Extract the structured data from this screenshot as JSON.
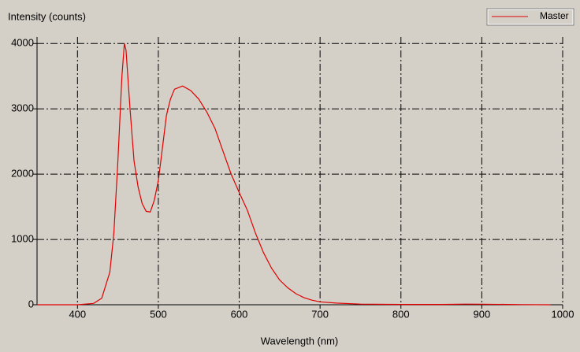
{
  "chart_data": {
    "type": "line",
    "y_label": "Intensity (counts)",
    "x_label": "Wavelength (nm)",
    "x": [
      350,
      400,
      420,
      430,
      440,
      445,
      450,
      455,
      458,
      460,
      465,
      470,
      475,
      480,
      485,
      490,
      495,
      500,
      505,
      510,
      515,
      520,
      530,
      540,
      550,
      560,
      570,
      580,
      590,
      600,
      610,
      620,
      630,
      640,
      650,
      660,
      670,
      680,
      690,
      700,
      720,
      750,
      800,
      850,
      880,
      900,
      950,
      985
    ],
    "series": [
      {
        "name": "Master",
        "color": "#e00000",
        "values": [
          0,
          0,
          20,
          100,
          500,
          1100,
          2200,
          3500,
          4000,
          3900,
          3000,
          2200,
          1800,
          1550,
          1430,
          1420,
          1600,
          1900,
          2400,
          2900,
          3150,
          3300,
          3350,
          3280,
          3150,
          2950,
          2700,
          2350,
          2000,
          1720,
          1450,
          1100,
          800,
          560,
          380,
          260,
          170,
          110,
          70,
          45,
          25,
          10,
          5,
          5,
          10,
          8,
          3,
          0
        ]
      }
    ],
    "xlim": [
      350,
      1000
    ],
    "xticks": [
      400,
      500,
      600,
      700,
      800,
      900,
      1000
    ],
    "ylim": [
      0,
      4100
    ],
    "yticks": [
      0,
      1000,
      2000,
      3000,
      4000
    ],
    "grid": true,
    "legend": "top-right"
  }
}
